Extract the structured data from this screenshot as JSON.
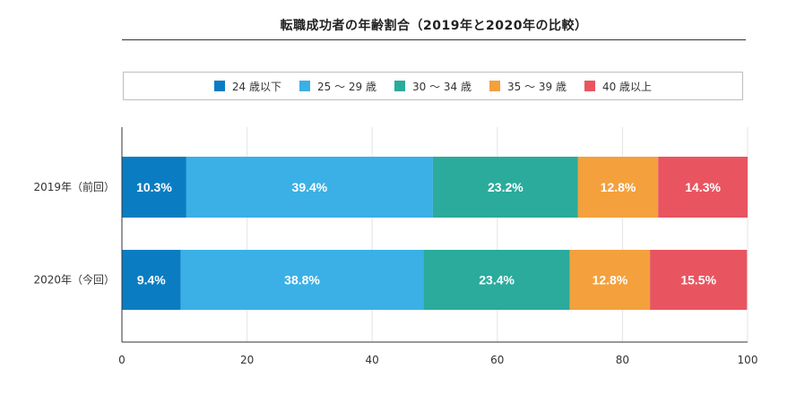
{
  "chart_data": {
    "type": "bar",
    "orientation": "horizontal",
    "stacked": true,
    "title": "転職成功者の年齢割合（2019年と2020年の比較）",
    "categories": [
      "2019年（前回）",
      "2020年（今回）"
    ],
    "series": [
      {
        "name": "24 歳以下",
        "values": [
          10.3,
          9.4
        ],
        "color": "#0a7dc2",
        "labels": [
          "10.3%",
          "9.4%"
        ]
      },
      {
        "name": "25 ～ 29 歳",
        "values": [
          39.4,
          38.8
        ],
        "color": "#3ab0e6",
        "labels": [
          "39.4%",
          "38.8%"
        ]
      },
      {
        "name": "30 ～ 34 歳",
        "values": [
          23.2,
          23.4
        ],
        "color": "#2aab9c",
        "labels": [
          "23.2%",
          "23.4%"
        ]
      },
      {
        "name": "35 ～ 39 歳",
        "values": [
          12.8,
          12.8
        ],
        "color": "#f4a03c",
        "labels": [
          "12.8%",
          "12.8%"
        ]
      },
      {
        "name": "40 歳以上",
        "values": [
          14.3,
          15.5
        ],
        "color": "#e85561",
        "labels": [
          "14.3%",
          "15.5%"
        ]
      }
    ],
    "xlim": [
      0,
      100
    ],
    "xticks": [
      "0",
      "20",
      "40",
      "60",
      "80",
      "100"
    ],
    "legend": "top",
    "grid": "vertical"
  }
}
